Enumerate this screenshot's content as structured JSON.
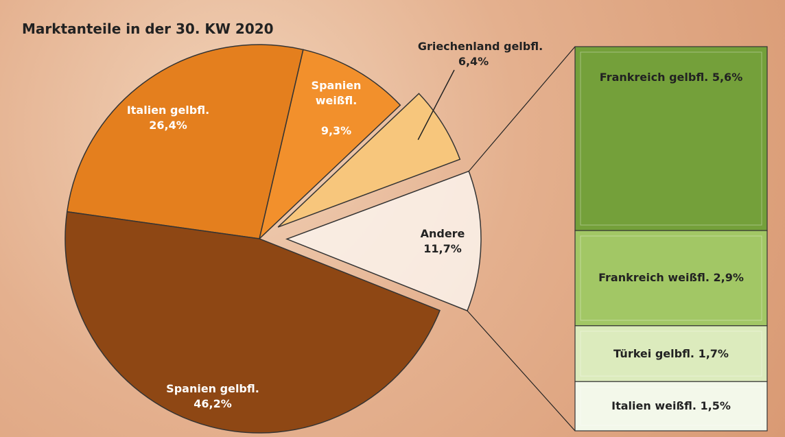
{
  "chart_data": [
    {
      "type": "pie",
      "title": "Marktanteile in der 30. KW 2020",
      "categories": [
        "Italien gelbfl.",
        "Spanien weißfl.",
        "Griechenland gelbfl.",
        "Andere",
        "Spanien gelbfl."
      ],
      "values": [
        26.4,
        9.3,
        6.4,
        11.7,
        46.2
      ],
      "value_labels": [
        "26,4%",
        "9,3%",
        "6,4%",
        "11,7%",
        "46,2%"
      ],
      "colors": [
        "#e47f1e",
        "#f2902c",
        "#f7c67c",
        "#fbf3ec",
        "#8e4714"
      ]
    },
    {
      "type": "bar",
      "categories": [
        "Frankreich gelbfl.",
        "Frankreich weißfl.",
        "Türkei gelbfl.",
        "Italien weißfl."
      ],
      "values": [
        5.6,
        2.9,
        1.7,
        1.5
      ],
      "value_labels": [
        "5,6%",
        "2,9%",
        "1,7%",
        "1,5%"
      ],
      "colors": [
        "#74a03a",
        "#a2c765",
        "#dcebbd",
        "#f3f8ea"
      ]
    }
  ]
}
